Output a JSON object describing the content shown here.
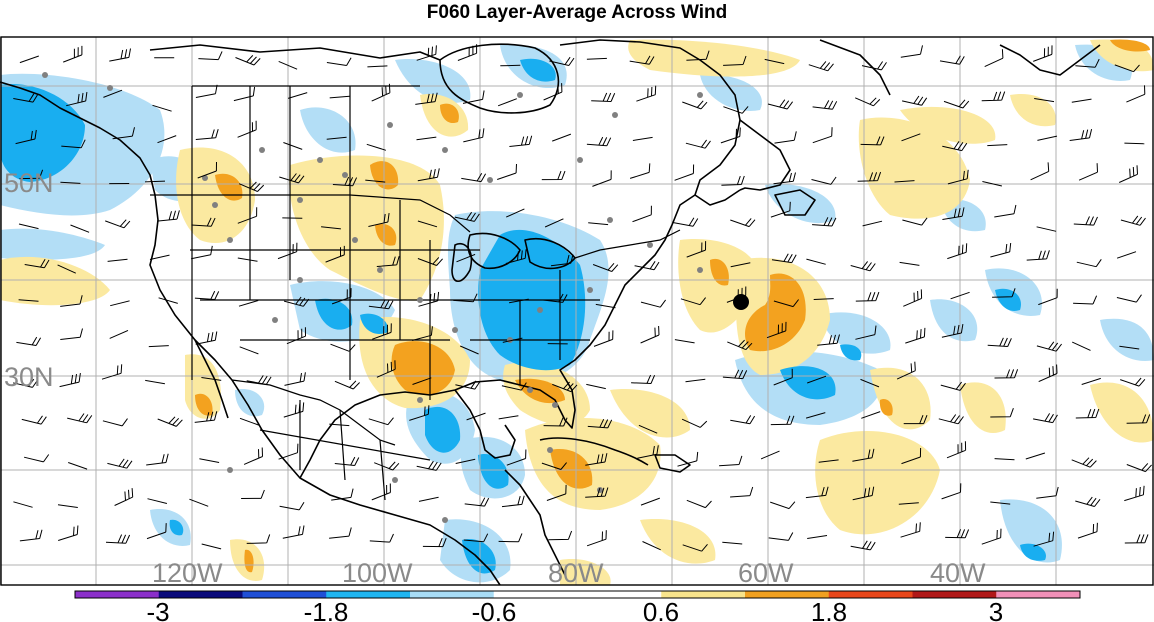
{
  "title": "F060 Layer-Average Across Wind",
  "lat_labels": [
    "50N",
    "30N"
  ],
  "lon_labels": [
    "120W",
    "100W",
    "80W",
    "60W",
    "40W"
  ],
  "colorbar": {
    "colors": [
      "#8b2fc9",
      "#0a0a7a",
      "#1f4fd6",
      "#1fb5f0",
      "#a8dcf5",
      "#ffffff",
      "#ffffff",
      "#f8e48c",
      "#f0a020",
      "#e8461a",
      "#b01818",
      "#f090b8"
    ],
    "tick_labels": [
      "-3",
      "-1.8",
      "-0.6",
      "0.6",
      "1.8",
      "3"
    ]
  },
  "palette": {
    "strong_negative": "#19aef0",
    "weak_negative": "#b3def6",
    "weak_positive": "#fbe9a0",
    "strong_positive": "#f3a21f",
    "coastline": "#000000",
    "grid": "#b0b0b0",
    "station_dot": "#808080"
  },
  "marker": {
    "name": "black-dot"
  }
}
